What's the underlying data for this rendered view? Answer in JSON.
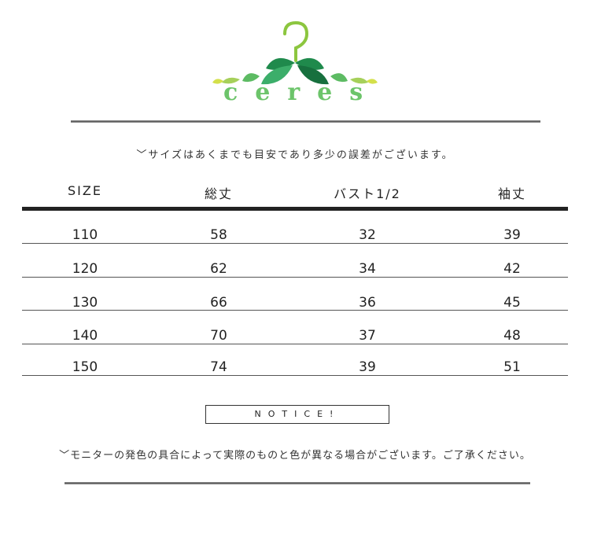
{
  "brand": {
    "name": "ceres",
    "logo_icon": "hanger-with-leaves-icon",
    "colors": {
      "green": "#6cc46a",
      "dark_green": "#1f8a4c",
      "lime": "#c8dc3a"
    }
  },
  "size_note": "﹀サイズはあくまでも目安であり多少の誤差がございます。",
  "table": {
    "headers": [
      "SIZE",
      "総丈",
      "バスト1/2",
      "袖丈"
    ],
    "rows": [
      [
        "110",
        "58",
        "32",
        "39"
      ],
      [
        "120",
        "62",
        "34",
        "42"
      ],
      [
        "130",
        "66",
        "36",
        "45"
      ],
      [
        "140",
        "70",
        "37",
        "48"
      ],
      [
        "150",
        "74",
        "39",
        "51"
      ]
    ]
  },
  "notice": {
    "label": "NOTICE!",
    "text": "﹀モニターの発色の具合によって実際のものと色が異なる場合がございます。ご了承ください。"
  }
}
